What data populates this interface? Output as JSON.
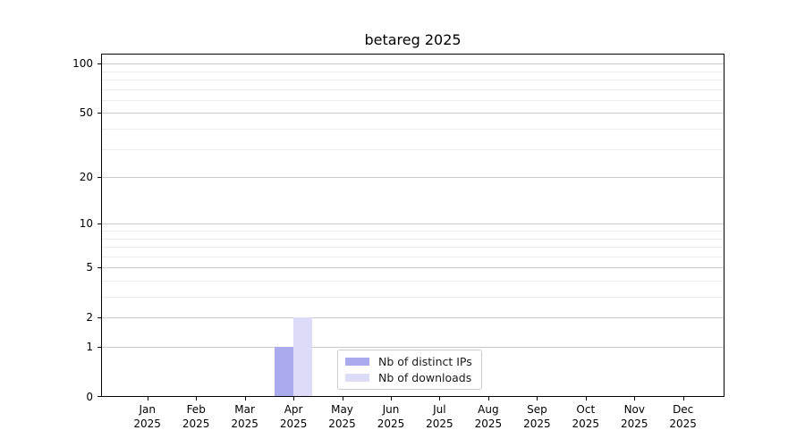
{
  "figure": {
    "background": "#ffffff"
  },
  "chart_data": {
    "type": "bar",
    "title": "betareg 2025",
    "categories": [
      "Jan",
      "Feb",
      "Mar",
      "Apr",
      "May",
      "Jun",
      "Jul",
      "Aug",
      "Sep",
      "Oct",
      "Nov",
      "Dec"
    ],
    "category_year": "2025",
    "series": [
      {
        "name": "Nb of distinct IPs",
        "color": "#aaaaee",
        "values": [
          0,
          0,
          0,
          1,
          0,
          0,
          0,
          0,
          0,
          0,
          0,
          0
        ]
      },
      {
        "name": "Nb of downloads",
        "color": "#dcdcf8",
        "values": [
          0,
          0,
          0,
          2,
          0,
          0,
          0,
          0,
          0,
          0,
          0,
          0
        ]
      }
    ],
    "yscale": "log1p",
    "yticks": [
      0,
      1,
      2,
      5,
      10,
      20,
      50,
      100
    ],
    "yticks_minor": [
      3,
      4,
      6,
      7,
      8,
      9,
      30,
      40,
      60,
      70,
      80,
      90
    ],
    "ylim": [
      0,
      115
    ],
    "xlim": [
      0.05,
      12.85
    ],
    "bar_width": 0.385,
    "grid": "horizontal-only",
    "legend_position": "bottom-center",
    "colors": {
      "grid_major": "#c9c9c9",
      "grid_minor": "#ededed",
      "axis": "#000000",
      "text": "#000000"
    }
  }
}
